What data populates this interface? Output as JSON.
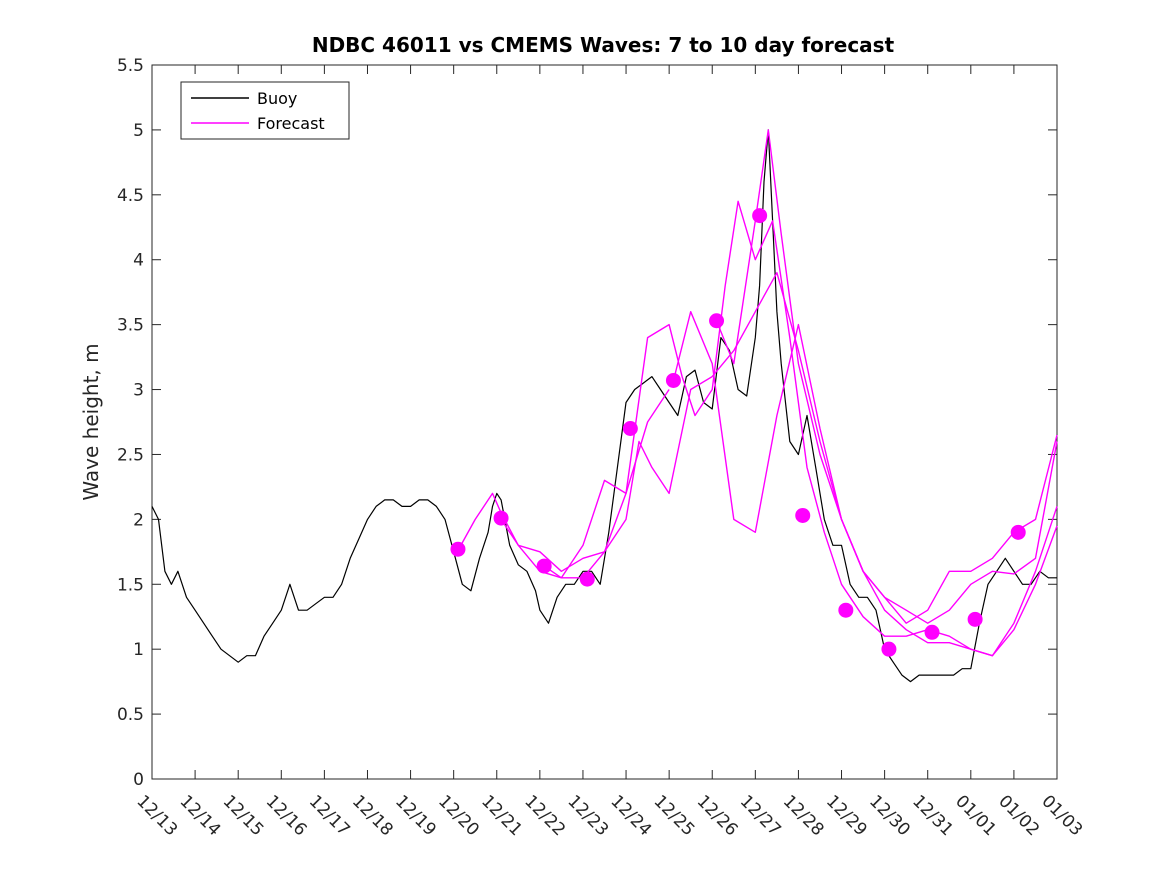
{
  "chart_data": {
    "type": "line",
    "title": "NDBC 46011 vs CMEMS Waves: 7 to 10 day forecast",
    "xlabel": "",
    "ylabel": "Wave height, m",
    "xlim": [
      0,
      21
    ],
    "ylim": [
      0,
      5.5
    ],
    "yticks": [
      0,
      0.5,
      1,
      1.5,
      2,
      2.5,
      3,
      3.5,
      4,
      4.5,
      5,
      5.5
    ],
    "ytick_labels": [
      "0",
      "0.5",
      "1",
      "1.5",
      "2",
      "2.5",
      "3",
      "3.5",
      "4",
      "4.5",
      "5",
      "5.5"
    ],
    "xticks": [
      0,
      1,
      2,
      3,
      4,
      5,
      6,
      7,
      8,
      9,
      10,
      11,
      12,
      13,
      14,
      15,
      16,
      17,
      18,
      19,
      20,
      21
    ],
    "xtick_labels": [
      "12/13",
      "12/14",
      "12/15",
      "12/16",
      "12/17",
      "12/18",
      "12/19",
      "12/20",
      "12/21",
      "12/22",
      "12/23",
      "12/24",
      "12/25",
      "12/26",
      "12/27",
      "12/28",
      "12/29",
      "12/30",
      "12/31",
      "01/01",
      "01/02",
      "01/03"
    ],
    "legend": {
      "position": "top-left",
      "entries": [
        {
          "label": "Buoy",
          "color": "#000000"
        },
        {
          "label": "Forecast",
          "color": "#ff00ff"
        }
      ]
    },
    "series": [
      {
        "name": "Buoy",
        "color": "#000000",
        "x": [
          0,
          0.15,
          0.3,
          0.45,
          0.6,
          0.8,
          1.0,
          1.2,
          1.4,
          1.6,
          1.8,
          2.0,
          2.2,
          2.4,
          2.6,
          2.8,
          3.0,
          3.2,
          3.4,
          3.6,
          3.8,
          4.0,
          4.2,
          4.4,
          4.6,
          4.8,
          5.0,
          5.2,
          5.4,
          5.6,
          5.8,
          6.0,
          6.2,
          6.4,
          6.6,
          6.8,
          7.0,
          7.2,
          7.4,
          7.6,
          7.8,
          7.9,
          8.0,
          8.1,
          8.3,
          8.5,
          8.7,
          8.9,
          9.0,
          9.2,
          9.4,
          9.6,
          9.8,
          10.0,
          10.2,
          10.4,
          10.6,
          10.8,
          11.0,
          11.2,
          11.4,
          11.6,
          11.8,
          12.0,
          12.2,
          12.4,
          12.6,
          12.8,
          13.0,
          13.2,
          13.4,
          13.6,
          13.8,
          14.0,
          14.1,
          14.2,
          14.3,
          14.4,
          14.5,
          14.6,
          14.8,
          15.0,
          15.2,
          15.4,
          15.6,
          15.8,
          16.0,
          16.2,
          16.4,
          16.6,
          16.8,
          17.0,
          17.2,
          17.4,
          17.6,
          17.8,
          18.0,
          18.2,
          18.4,
          18.6,
          18.8,
          19.0,
          19.2,
          19.4,
          19.6,
          19.8,
          20.0,
          20.2,
          20.4,
          20.6,
          20.8,
          21.0
        ],
        "y": [
          2.1,
          2.0,
          1.6,
          1.5,
          1.6,
          1.4,
          1.3,
          1.2,
          1.1,
          1.0,
          0.95,
          0.9,
          0.95,
          0.95,
          1.1,
          1.2,
          1.3,
          1.5,
          1.3,
          1.3,
          1.35,
          1.4,
          1.4,
          1.5,
          1.7,
          1.85,
          2.0,
          2.1,
          2.15,
          2.15,
          2.1,
          2.1,
          2.15,
          2.15,
          2.1,
          2.0,
          1.75,
          1.5,
          1.45,
          1.7,
          1.9,
          2.1,
          2.2,
          2.15,
          1.8,
          1.65,
          1.6,
          1.45,
          1.3,
          1.2,
          1.4,
          1.5,
          1.5,
          1.6,
          1.6,
          1.5,
          1.9,
          2.4,
          2.9,
          3.0,
          3.05,
          3.1,
          3.0,
          2.9,
          2.8,
          3.1,
          3.15,
          2.9,
          2.85,
          3.4,
          3.3,
          3.0,
          2.95,
          3.4,
          3.8,
          4.6,
          5.0,
          4.3,
          3.6,
          3.2,
          2.6,
          2.5,
          2.8,
          2.4,
          2.0,
          1.8,
          1.8,
          1.5,
          1.4,
          1.4,
          1.3,
          1.0,
          0.9,
          0.8,
          0.75,
          0.8,
          0.8,
          0.8,
          0.8,
          0.8,
          0.85,
          0.85,
          1.2,
          1.5,
          1.6,
          1.7,
          1.6,
          1.5,
          1.5,
          1.6,
          1.55,
          1.55
        ]
      },
      {
        "name": "Forecast",
        "color": "#ff00ff",
        "x": [
          7.1,
          7.5,
          7.9,
          8.1,
          8.5,
          9.0,
          9.5,
          10.0,
          10.5,
          11.0,
          11.5,
          12.0
        ],
        "y": [
          1.76,
          2.0,
          2.2,
          2.05,
          1.8,
          1.6,
          1.55,
          1.55,
          1.75,
          2.2,
          2.75,
          3.0
        ]
      },
      {
        "name": "Forecast",
        "color": "#ff00ff",
        "x": [
          8.1,
          8.5,
          9.0,
          9.5,
          10.0,
          10.5,
          11.0,
          11.3,
          11.6,
          12.0,
          12.5,
          13.0,
          13.5,
          14.0,
          14.5,
          15.0,
          15.5,
          16.0,
          16.5,
          17.0,
          17.5,
          18.0,
          18.5,
          19.0,
          19.5,
          20.0,
          20.5,
          21.0
        ],
        "y": [
          2.0,
          1.8,
          1.75,
          1.6,
          1.7,
          1.75,
          2.0,
          2.6,
          2.4,
          2.2,
          3.0,
          3.1,
          3.3,
          3.6,
          3.9,
          3.3,
          2.6,
          2.0,
          1.6,
          1.3,
          1.15,
          1.05,
          1.05,
          1.0,
          0.95,
          1.2,
          1.6,
          2.1
        ]
      },
      {
        "name": "Forecast",
        "color": "#ff00ff",
        "x": [
          9.1,
          9.5,
          10.0,
          10.5,
          11.0,
          11.5,
          12.0,
          12.3,
          12.6,
          13.0,
          13.3,
          13.6,
          14.0,
          14.4,
          14.8,
          15.2,
          15.6,
          16.0,
          16.5,
          17.0,
          17.5,
          18.0,
          18.5,
          19.0,
          19.5,
          20.0,
          20.5,
          21.0
        ],
        "y": [
          1.64,
          1.55,
          1.8,
          2.3,
          2.2,
          3.4,
          3.5,
          3.1,
          2.8,
          3.0,
          3.8,
          4.45,
          4.0,
          4.3,
          3.4,
          2.4,
          1.9,
          1.5,
          1.25,
          1.1,
          1.1,
          1.15,
          1.1,
          1.0,
          0.95,
          1.15,
          1.5,
          1.95
        ]
      },
      {
        "name": "Forecast",
        "color": "#ff00ff",
        "x": [
          12.1,
          12.5,
          13.0,
          13.5,
          14.0,
          14.5,
          15.0,
          15.5,
          16.0,
          16.5,
          17.0,
          17.5,
          18.0,
          18.5,
          19.0,
          19.5,
          20.0,
          20.5,
          21.0
        ],
        "y": [
          3.07,
          3.6,
          3.2,
          2.0,
          1.9,
          2.8,
          3.5,
          2.7,
          2.0,
          1.6,
          1.4,
          1.3,
          1.2,
          1.3,
          1.5,
          1.6,
          1.58,
          1.7,
          2.6
        ]
      },
      {
        "name": "Forecast",
        "color": "#ff00ff",
        "x": [
          13.1,
          13.5,
          14.0,
          14.3,
          14.6,
          15.0,
          15.5,
          16.0,
          16.5,
          17.0,
          17.5,
          18.0,
          18.5,
          19.0,
          19.5,
          20.0,
          20.5,
          21.0
        ],
        "y": [
          3.53,
          3.2,
          4.3,
          5.0,
          4.2,
          3.2,
          2.5,
          2.0,
          1.6,
          1.4,
          1.2,
          1.3,
          1.6,
          1.6,
          1.7,
          1.9,
          2.0,
          2.65
        ]
      }
    ],
    "markers": {
      "name": "Forecast",
      "color": "#ff00ff",
      "x": [
        7.1,
        8.1,
        9.1,
        10.1,
        11.1,
        12.1,
        13.1,
        14.1,
        15.1,
        16.1,
        17.1,
        18.1,
        19.1,
        20.1
      ],
      "y": [
        1.77,
        2.01,
        1.64,
        1.54,
        2.7,
        3.07,
        3.53,
        4.34,
        2.03,
        1.3,
        1.0,
        1.13,
        1.23,
        1.9
      ]
    }
  }
}
